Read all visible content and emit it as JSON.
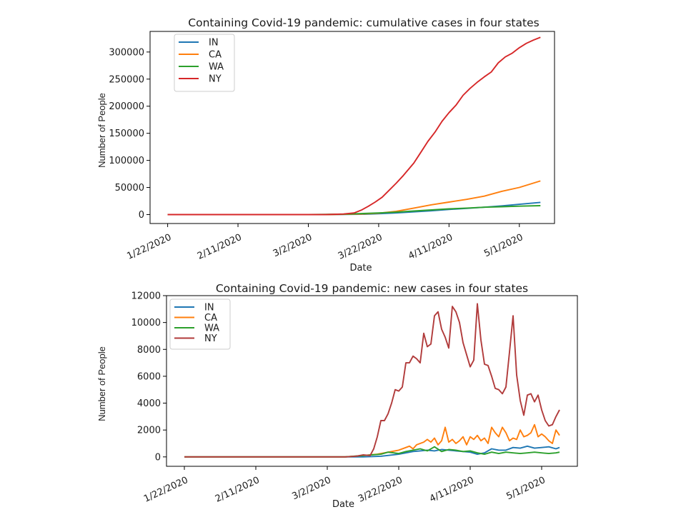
{
  "chart_data": [
    {
      "type": "line",
      "title": "Containing Covid-19 pandemic: cumulative cases in four states",
      "xlabel": "Date",
      "ylabel": "Number of People",
      "x_ticks": [
        "1/22/2020",
        "2/11/2020",
        "3/2/2020",
        "3/22/2020",
        "4/11/2020",
        "5/1/2020"
      ],
      "x_tick_days": [
        0,
        20,
        40,
        60,
        80,
        100
      ],
      "y_ticks": [
        0,
        50000,
        100000,
        150000,
        200000,
        250000,
        300000
      ],
      "y_tick_labels": [
        "0",
        "50000",
        "100000",
        "150000",
        "200000",
        "250000",
        "300000"
      ],
      "xlim": [
        -5,
        110
      ],
      "ylim": [
        -16500,
        338000
      ],
      "legend": {
        "position": "top-left",
        "entries": [
          "IN",
          "CA",
          "WA",
          "NY"
        ]
      },
      "series": [
        {
          "name": "IN",
          "color": "#1f77b4",
          "x": [
            0,
            45,
            55,
            60,
            65,
            70,
            75,
            80,
            85,
            90,
            95,
            100,
            106
          ],
          "values": [
            0,
            0,
            500,
            1500,
            3000,
            5000,
            7000,
            9500,
            11500,
            13500,
            16000,
            19000,
            22500
          ]
        },
        {
          "name": "CA",
          "color": "#ff7f0e",
          "x": [
            0,
            45,
            55,
            60,
            65,
            70,
            75,
            80,
            85,
            90,
            95,
            100,
            106
          ],
          "values": [
            0,
            0,
            1000,
            2500,
            6000,
            12000,
            18000,
            23000,
            28000,
            34000,
            43000,
            50000,
            62000
          ]
        },
        {
          "name": "WA",
          "color": "#2ca02c",
          "x": [
            0,
            40,
            50,
            55,
            60,
            65,
            70,
            75,
            80,
            85,
            90,
            95,
            100,
            106
          ],
          "values": [
            0,
            0,
            800,
            1800,
            3000,
            4500,
            6500,
            8500,
            10500,
            12000,
            13500,
            14500,
            15500,
            16500
          ]
        },
        {
          "name": "NY",
          "color": "#d62728",
          "x": [
            0,
            45,
            50,
            53,
            55,
            57,
            59,
            61,
            63,
            65,
            67,
            70,
            72,
            74,
            76,
            78,
            80,
            82,
            84,
            86,
            88,
            90,
            92,
            94,
            96,
            98,
            100,
            102,
            104,
            106
          ],
          "values": [
            0,
            0,
            1000,
            3000,
            8000,
            15000,
            23000,
            32000,
            45000,
            58000,
            72000,
            95000,
            115000,
            135000,
            152000,
            172000,
            188000,
            202000,
            220000,
            233000,
            244000,
            254000,
            263000,
            280000,
            291000,
            298000,
            308000,
            316000,
            322000,
            327000
          ]
        }
      ]
    },
    {
      "type": "line",
      "title": "Containing Covid-19 pandemic: new cases in four states",
      "xlabel": "Date",
      "ylabel": "Number of People",
      "x_ticks": [
        "1/22/2020",
        "2/11/2020",
        "3/2/2020",
        "3/22/2020",
        "4/11/2020",
        "5/1/2020"
      ],
      "x_tick_days": [
        0,
        20,
        40,
        60,
        80,
        100
      ],
      "y_ticks": [
        0,
        2000,
        4000,
        6000,
        8000,
        10000,
        12000
      ],
      "y_tick_labels": [
        "0",
        "2000",
        "4000",
        "6000",
        "8000",
        "10000",
        "12000"
      ],
      "xlim": [
        -5,
        110
      ],
      "ylim": [
        -700,
        12000
      ],
      "legend": {
        "position": "top-left",
        "entries": [
          "IN",
          "CA",
          "WA",
          "NY"
        ]
      },
      "series": [
        {
          "name": "IN",
          "color": "#1f77b4",
          "x": [
            0,
            50,
            55,
            60,
            62,
            64,
            66,
            68,
            70,
            72,
            74,
            76,
            78,
            80,
            82,
            84,
            86,
            88,
            90,
            92,
            94,
            96,
            98,
            100,
            102,
            104,
            105
          ],
          "values": [
            0,
            0,
            50,
            200,
            300,
            400,
            450,
            500,
            450,
            550,
            500,
            450,
            400,
            350,
            200,
            300,
            600,
            500,
            500,
            700,
            650,
            800,
            650,
            700,
            750,
            600,
            700
          ]
        },
        {
          "name": "CA",
          "color": "#ff7f0e",
          "x": [
            0,
            45,
            50,
            52,
            54,
            56,
            58,
            60,
            62,
            63,
            64,
            65,
            66,
            67,
            68,
            69,
            70,
            71,
            72,
            73,
            74,
            75,
            76,
            77,
            78,
            79,
            80,
            81,
            82,
            83,
            84,
            85,
            86,
            87,
            88,
            89,
            90,
            91,
            92,
            93,
            94,
            95,
            96,
            97,
            98,
            99,
            100,
            101,
            102,
            103,
            104,
            105
          ],
          "values": [
            0,
            0,
            100,
            150,
            200,
            300,
            400,
            500,
            700,
            800,
            600,
            900,
            1000,
            1100,
            1300,
            1100,
            1400,
            900,
            1200,
            2200,
            1100,
            1300,
            1000,
            1200,
            1500,
            900,
            1500,
            1300,
            1600,
            1200,
            1400,
            1000,
            2200,
            1800,
            1500,
            2200,
            1800,
            1200,
            1400,
            1300,
            2000,
            1500,
            1600,
            1800,
            2400,
            1500,
            1700,
            1500,
            1200,
            1000,
            2000,
            1600
          ]
        },
        {
          "name": "WA",
          "color": "#2ca02c",
          "x": [
            0,
            45,
            50,
            55,
            57,
            60,
            62,
            64,
            66,
            68,
            70,
            72,
            74,
            76,
            78,
            80,
            82,
            84,
            86,
            88,
            90,
            92,
            94,
            96,
            98,
            100,
            102,
            104,
            105
          ],
          "values": [
            0,
            0,
            100,
            200,
            350,
            250,
            400,
            500,
            600,
            450,
            750,
            400,
            550,
            500,
            400,
            450,
            300,
            200,
            350,
            250,
            350,
            300,
            250,
            300,
            350,
            300,
            250,
            300,
            350
          ]
        },
        {
          "name": "NY",
          "color": "#b13b3b",
          "x": [
            0,
            45,
            48,
            50,
            52,
            53,
            54,
            55,
            56,
            57,
            58,
            59,
            60,
            61,
            62,
            63,
            64,
            65,
            66,
            67,
            68,
            69,
            70,
            71,
            72,
            73,
            74,
            75,
            76,
            77,
            78,
            79,
            80,
            81,
            82,
            83,
            84,
            85,
            86,
            87,
            88,
            89,
            90,
            91,
            92,
            93,
            94,
            95,
            96,
            97,
            98,
            99,
            100,
            101,
            102,
            103,
            104,
            105
          ],
          "values": [
            0,
            0,
            50,
            150,
            100,
            600,
            1500,
            2700,
            2700,
            3200,
            4000,
            5000,
            4900,
            5200,
            7000,
            7000,
            7500,
            7300,
            7000,
            9200,
            8200,
            8400,
            10500,
            10800,
            9500,
            8900,
            8100,
            11200,
            10800,
            10000,
            8500,
            7600,
            6700,
            7200,
            11400,
            8700,
            6900,
            6800,
            6000,
            5100,
            5000,
            4700,
            5200,
            7800,
            10500,
            6100,
            4200,
            3100,
            4600,
            4700,
            4100,
            4600,
            3500,
            2700,
            2300,
            2400,
            3000,
            3500
          ]
        }
      ]
    }
  ]
}
